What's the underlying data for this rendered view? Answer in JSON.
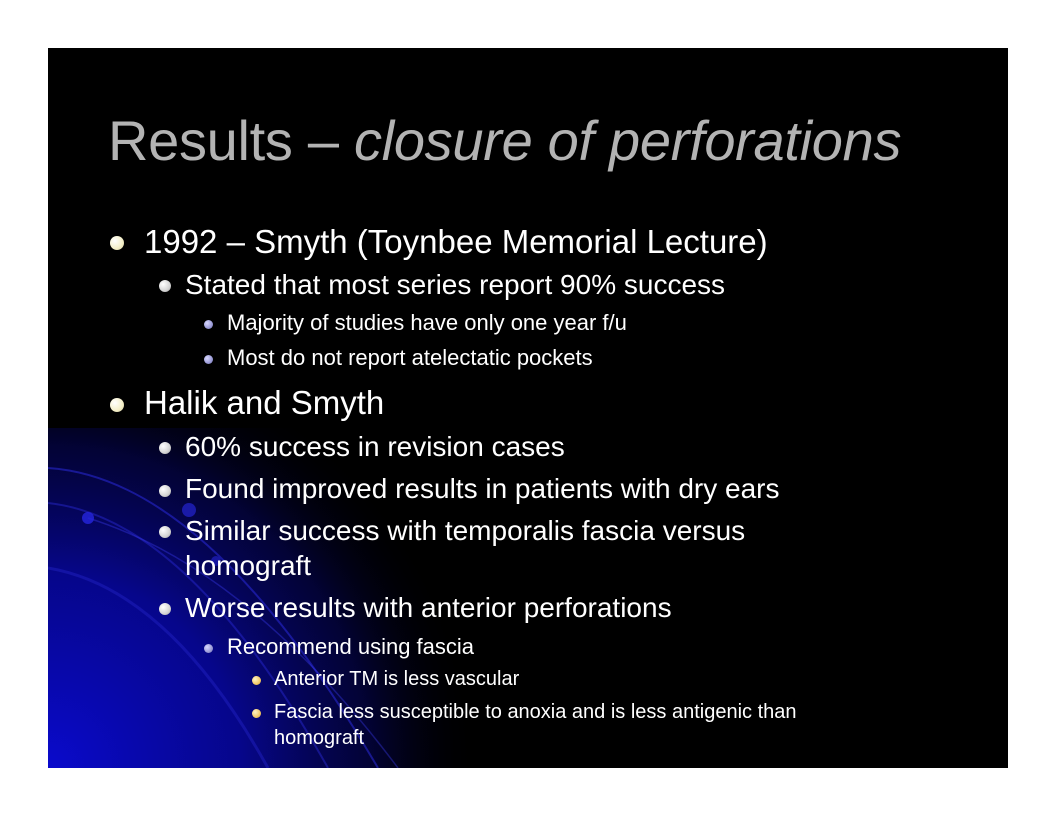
{
  "slide": {
    "title_main": "Results – ",
    "title_italic": "closure of perforations",
    "items": [
      {
        "level": 1,
        "text": "1992 – Smyth (Toynbee Memorial Lecture)"
      },
      {
        "level": 2,
        "text": "Stated that most series report 90% success"
      },
      {
        "level": 3,
        "text": "Majority of studies have only one year f/u"
      },
      {
        "level": 3,
        "text": "Most do not report atelectatic pockets"
      },
      {
        "level": 1,
        "text": "Halik and Smyth"
      },
      {
        "level": 2,
        "text": " 60% success in revision cases"
      },
      {
        "level": 2,
        "text": "Found improved results in patients with dry ears"
      },
      {
        "level": 2,
        "text": "Similar success with temporalis fascia versus"
      },
      {
        "level": 2,
        "text": "homograft",
        "continuation": true
      },
      {
        "level": 2,
        "text": "Worse results with anterior perforations"
      },
      {
        "level": 3,
        "text": "Recommend using fascia"
      },
      {
        "level": 4,
        "text": "Anterior TM is less vascular"
      },
      {
        "level": 4,
        "text": "Fascia less susceptible to anoxia and is less antigenic than"
      },
      {
        "level": 4,
        "text": "homograft",
        "continuation": true
      }
    ]
  },
  "colors": {
    "background": "#000000",
    "title": "#b3b3b3",
    "body_text": "#ffffff",
    "accent_blue": "#1a1ac8"
  }
}
